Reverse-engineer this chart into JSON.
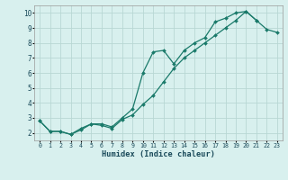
{
  "xlabel": "Humidex (Indice chaleur)",
  "xlim": [
    -0.5,
    23.5
  ],
  "ylim": [
    1.5,
    10.5
  ],
  "xticks": [
    0,
    1,
    2,
    3,
    4,
    5,
    6,
    7,
    8,
    9,
    10,
    11,
    12,
    13,
    14,
    15,
    16,
    17,
    18,
    19,
    20,
    21,
    22,
    23
  ],
  "yticks": [
    2,
    3,
    4,
    5,
    6,
    7,
    8,
    9,
    10
  ],
  "background_color": "#d8f0ee",
  "grid_color": "#b8d8d4",
  "line_color": "#1a7a6a",
  "upper_x": [
    0,
    1,
    2,
    3,
    4,
    5,
    6,
    7,
    8,
    9,
    10,
    11,
    12,
    13,
    14,
    15,
    16,
    17,
    18,
    19,
    20,
    21
  ],
  "upper_y": [
    2.8,
    2.1,
    2.1,
    1.9,
    2.3,
    2.6,
    2.6,
    2.4,
    3.0,
    3.6,
    6.0,
    7.4,
    7.5,
    6.6,
    7.5,
    8.0,
    8.35,
    9.4,
    9.65,
    10.0,
    10.1,
    9.5
  ],
  "lower_x": [
    0,
    1,
    2,
    3,
    4,
    5,
    6,
    7,
    8,
    9,
    10,
    11,
    12,
    13,
    14,
    15,
    16,
    17,
    18,
    19,
    20,
    21,
    22,
    23
  ],
  "lower_y": [
    2.8,
    2.1,
    2.1,
    1.9,
    2.2,
    2.6,
    2.5,
    2.3,
    2.9,
    3.2,
    3.9,
    4.5,
    5.4,
    6.3,
    7.0,
    7.5,
    8.0,
    8.5,
    9.0,
    9.5,
    10.1,
    9.5,
    8.9,
    8.7
  ]
}
